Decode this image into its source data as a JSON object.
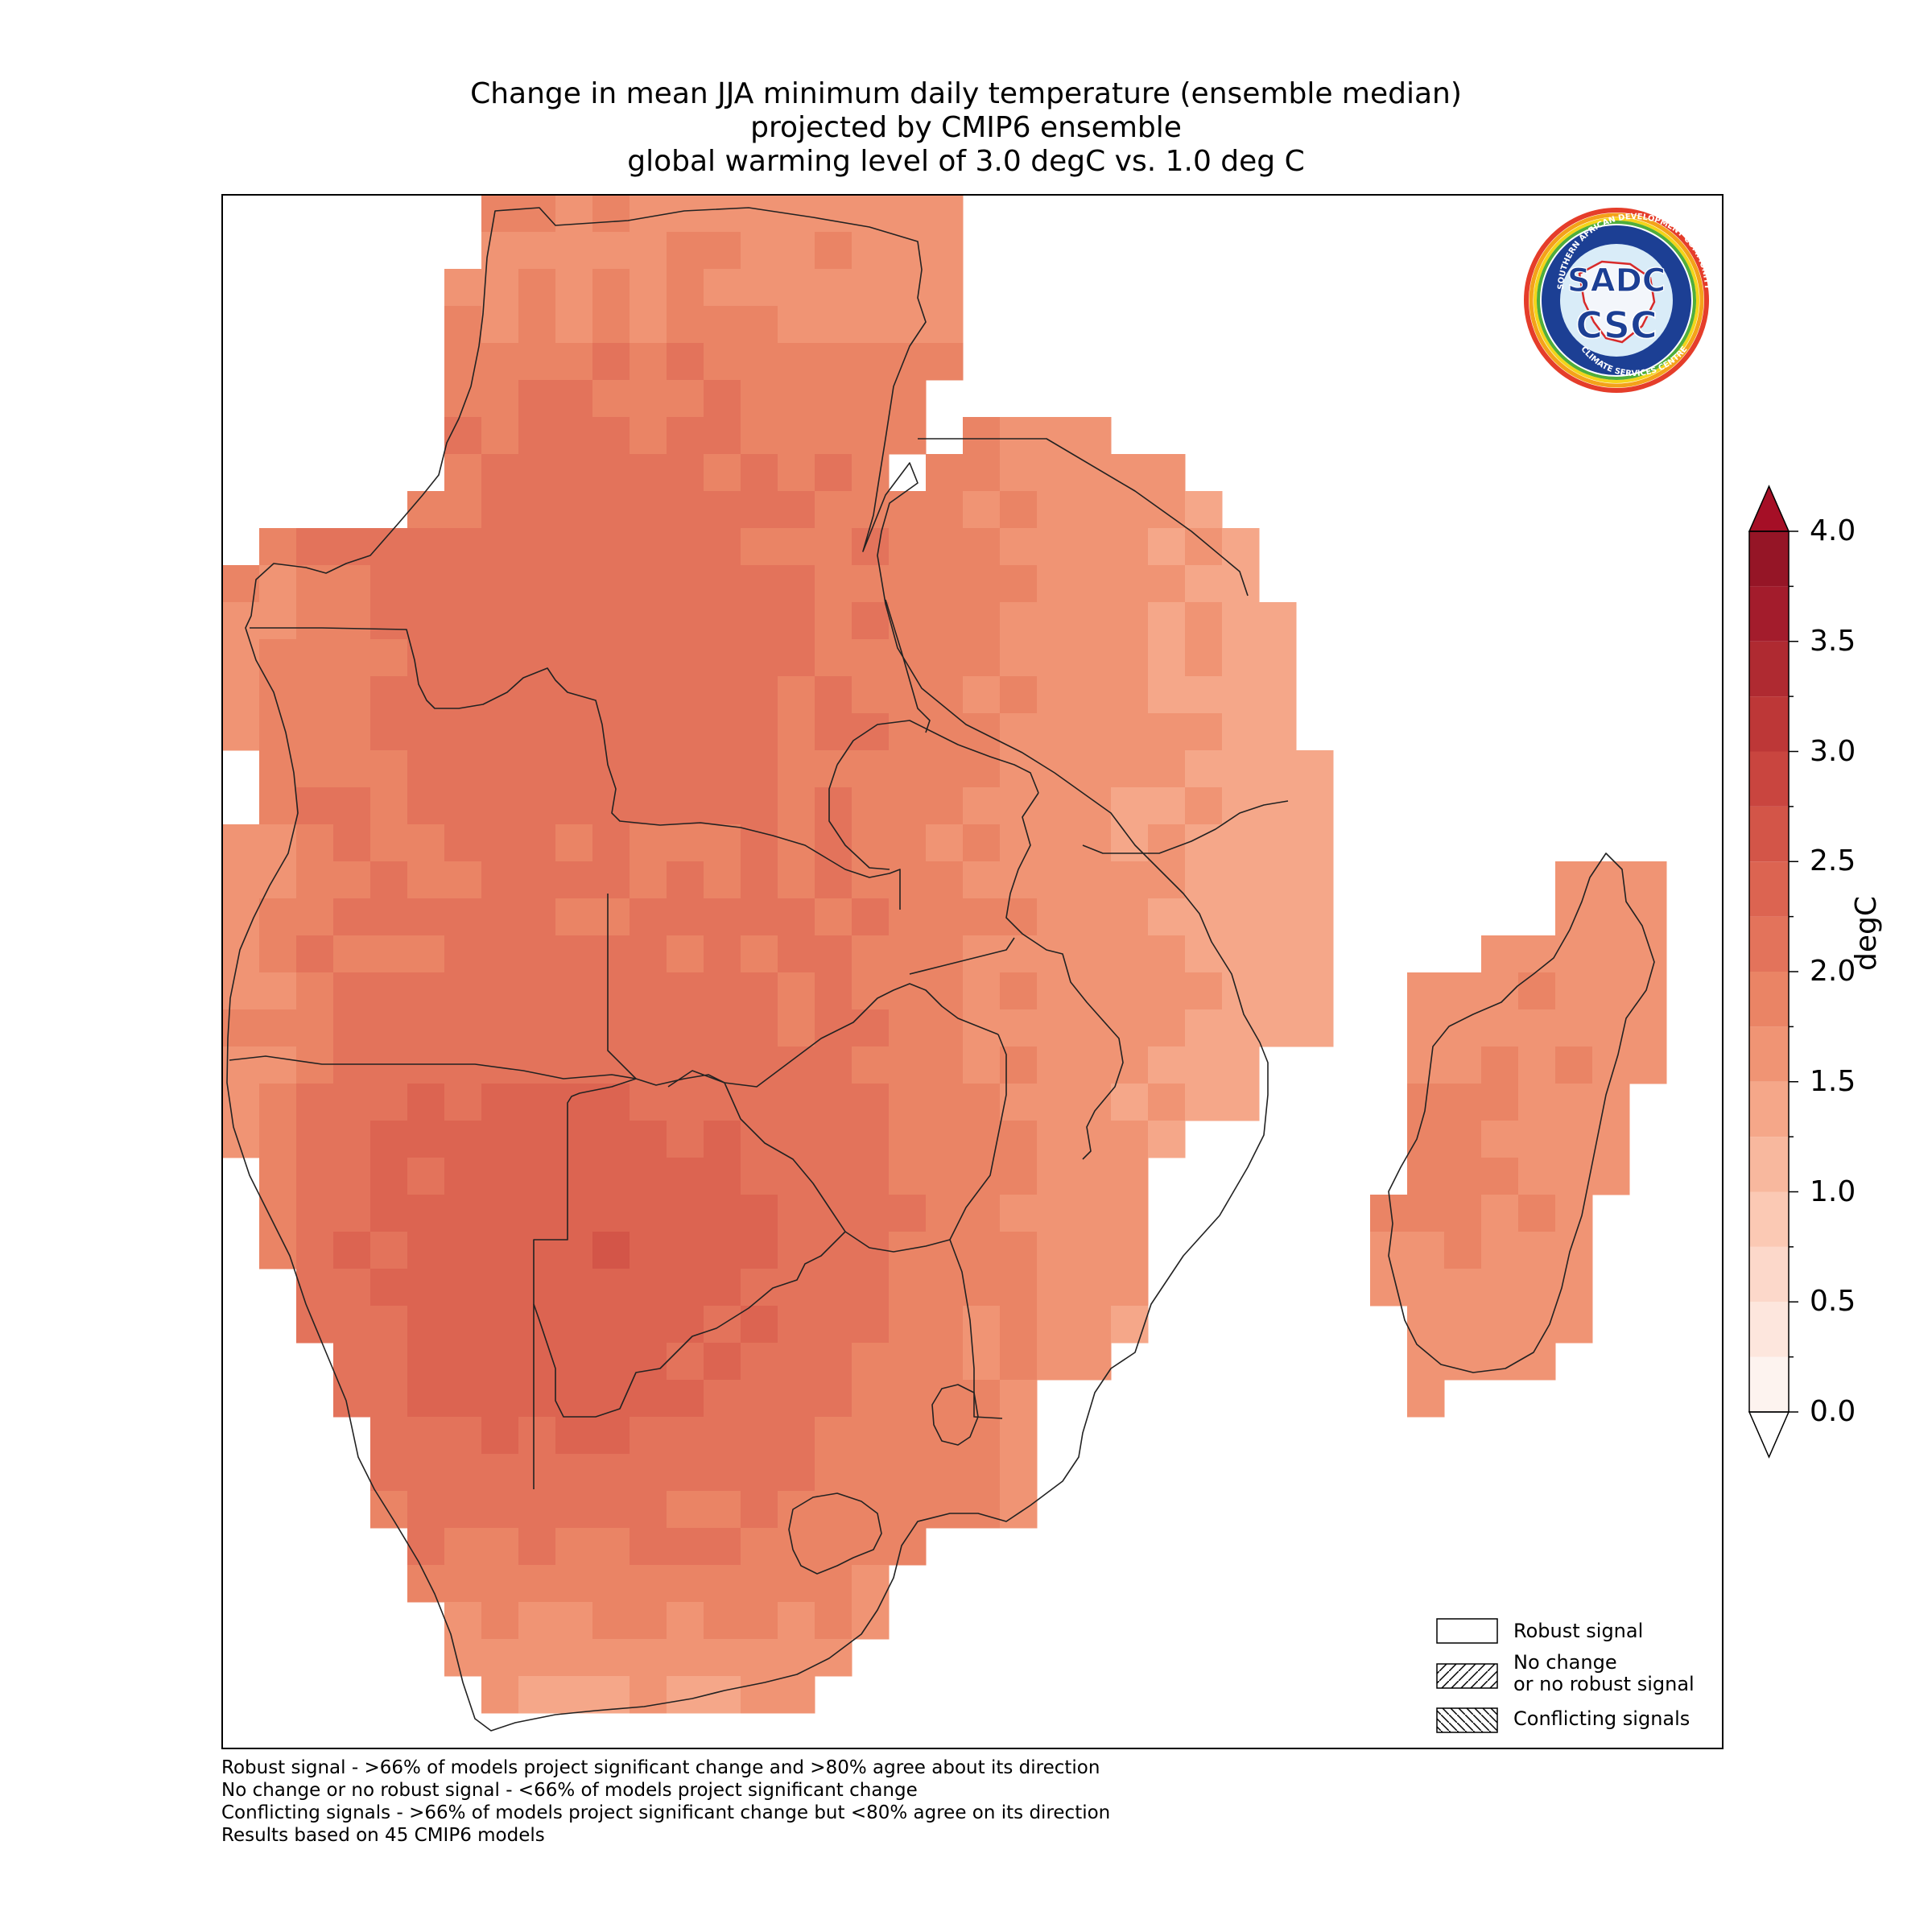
{
  "title": {
    "line1": "Change in mean JJA minimum daily temperature (ensemble median)",
    "line2": "projected by CMIP6 ensemble",
    "line3": "global warming level of 3.0 degC vs. 1.0 deg C"
  },
  "colorbar": {
    "label": "degC",
    "ticks": [
      "0.0",
      "0.5",
      "1.0",
      "1.5",
      "2.0",
      "2.5",
      "3.0",
      "3.5",
      "4.0"
    ],
    "min": 0.0,
    "max": 4.0,
    "step": 0.25,
    "colors": [
      "#fdf3ef",
      "#fde6dd",
      "#fcd8ca",
      "#fbc9b4",
      "#f8b89e",
      "#f5a789",
      "#f09474",
      "#ea8465",
      "#e3735b",
      "#dc6451",
      "#d35548",
      "#c9453f",
      "#bd3737",
      "#af2a31",
      "#a31c2c",
      "#951526"
    ],
    "under_color": "#ffffff",
    "over_color": "#a50f26"
  },
  "legend": {
    "robust": "Robust signal",
    "nochange_line1": "No change",
    "nochange_line2": "or no robust signal",
    "conflicting": "Conflicting signals"
  },
  "notes": {
    "line1": "Robust signal - >66% of models project significant change and >80% agree about its direction",
    "line2": "No change or no robust signal - <66% of models project significant change",
    "line3": "Conflicting signals - >66% of models project significant change but <80% agree on its direction",
    "line4": "Results based on 45 CMIP6 models"
  },
  "logo": {
    "abbr_top": "SADC",
    "abbr_bottom": "CSC",
    "ring_text_top": "SOUTHERN AFRICAN DEVELOPMENT COMMUNITY",
    "ring_text_bottom": "CLIMATE SERVICES CENTRE"
  },
  "map_data": {
    "field": "ensemble median change in JJA minimum daily temperature",
    "units": "degC",
    "typical_range": [
      1.2,
      2.9
    ],
    "higher_values": "interior plateau (Botswana, Namibia, northern South Africa)",
    "lower_values": "southern coast, eastern coast, Madagascar"
  }
}
